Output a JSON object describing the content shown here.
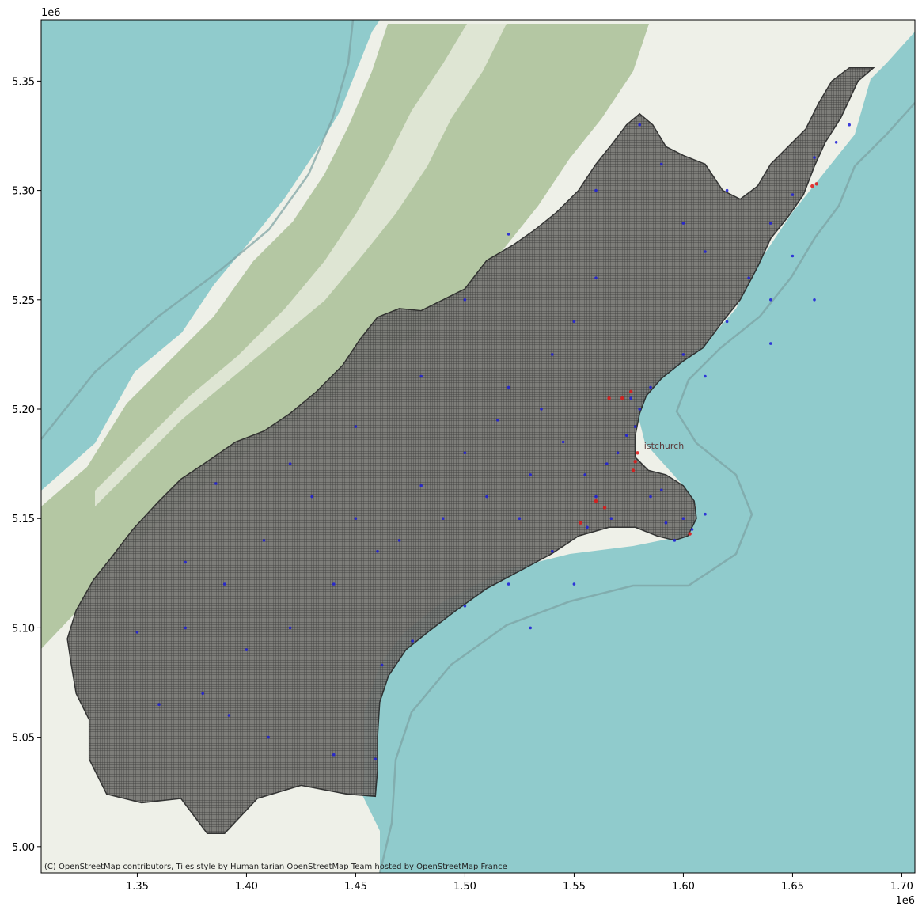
{
  "chart_data": {
    "type": "scatter",
    "title": "",
    "xlabel": "",
    "ylabel": "",
    "x_offset_label": "1e6",
    "y_offset_label": "1e6",
    "xlim": [
      1.306,
      1.706
    ],
    "ylim": [
      4.988,
      5.378
    ],
    "x_ticks": [
      1.35,
      1.4,
      1.45,
      1.5,
      1.55,
      1.6,
      1.65,
      1.7
    ],
    "x_tick_labels": [
      "1.35",
      "1.40",
      "1.45",
      "1.50",
      "1.55",
      "1.60",
      "1.65",
      "1.70"
    ],
    "y_ticks": [
      5.0,
      5.05,
      5.1,
      5.15,
      5.2,
      5.25,
      5.3,
      5.35
    ],
    "y_tick_labels": [
      "5.00",
      "5.05",
      "5.10",
      "5.15",
      "5.20",
      "5.25",
      "5.30",
      "5.35"
    ],
    "grid": false,
    "basemap": "OpenStreetMap Humanitarian",
    "colors": {
      "sea": "#90cbcc",
      "land": "#eef0e8",
      "forest": "#a9bf96",
      "region_fill": "#6f6f6c",
      "grid_line": "#2c2c2c",
      "points_primary": "#1c1cd8",
      "points_secondary": "#e01515"
    },
    "map_labels": [
      {
        "text": "istchurch",
        "x": 1.582,
        "y": 5.182
      }
    ],
    "series": [
      {
        "color": "#1c1cd8",
        "points": [
          [
            1.574,
            5.188
          ],
          [
            1.578,
            5.192
          ],
          [
            1.57,
            5.18
          ],
          [
            1.565,
            5.175
          ],
          [
            1.58,
            5.2
          ],
          [
            1.576,
            5.205
          ],
          [
            1.59,
            5.163
          ],
          [
            1.6,
            5.15
          ],
          [
            1.604,
            5.145
          ],
          [
            1.61,
            5.152
          ],
          [
            1.596,
            5.14
          ],
          [
            1.66,
            5.315
          ],
          [
            1.65,
            5.298
          ],
          [
            1.64,
            5.285
          ],
          [
            1.67,
            5.322
          ],
          [
            1.676,
            5.33
          ],
          [
            1.62,
            5.24
          ],
          [
            1.6,
            5.225
          ],
          [
            1.585,
            5.21
          ],
          [
            1.54,
            5.225
          ],
          [
            1.52,
            5.21
          ],
          [
            1.5,
            5.18
          ],
          [
            1.48,
            5.165
          ],
          [
            1.46,
            5.135
          ],
          [
            1.44,
            5.12
          ],
          [
            1.42,
            5.1
          ],
          [
            1.4,
            5.09
          ],
          [
            1.38,
            5.07
          ],
          [
            1.36,
            5.065
          ],
          [
            1.35,
            5.098
          ],
          [
            1.372,
            5.13
          ],
          [
            1.41,
            5.05
          ],
          [
            1.44,
            5.042
          ],
          [
            1.459,
            5.04
          ],
          [
            1.462,
            5.083
          ],
          [
            1.476,
            5.094
          ],
          [
            1.5,
            5.11
          ],
          [
            1.52,
            5.12
          ],
          [
            1.54,
            5.135
          ],
          [
            1.556,
            5.146
          ],
          [
            1.56,
            5.16
          ],
          [
            1.53,
            5.17
          ],
          [
            1.51,
            5.16
          ],
          [
            1.49,
            5.15
          ],
          [
            1.47,
            5.14
          ],
          [
            1.45,
            5.15
          ],
          [
            1.43,
            5.16
          ],
          [
            1.408,
            5.14
          ],
          [
            1.39,
            5.12
          ],
          [
            1.372,
            5.1
          ],
          [
            1.392,
            5.06
          ],
          [
            1.52,
            5.28
          ],
          [
            1.56,
            5.3
          ],
          [
            1.58,
            5.33
          ],
          [
            1.59,
            5.312
          ],
          [
            1.61,
            5.272
          ],
          [
            1.63,
            5.26
          ],
          [
            1.64,
            5.25
          ],
          [
            1.62,
            5.3
          ],
          [
            1.56,
            5.26
          ],
          [
            1.55,
            5.24
          ],
          [
            1.5,
            5.25
          ],
          [
            1.48,
            5.215
          ],
          [
            1.45,
            5.192
          ],
          [
            1.42,
            5.175
          ],
          [
            1.386,
            5.166
          ],
          [
            1.515,
            5.195
          ],
          [
            1.535,
            5.2
          ],
          [
            1.545,
            5.185
          ],
          [
            1.555,
            5.17
          ],
          [
            1.525,
            5.15
          ],
          [
            1.585,
            5.16
          ],
          [
            1.592,
            5.148
          ],
          [
            1.567,
            5.15
          ],
          [
            1.55,
            5.12
          ],
          [
            1.53,
            5.1
          ],
          [
            1.6,
            5.285
          ],
          [
            1.65,
            5.27
          ],
          [
            1.66,
            5.25
          ],
          [
            1.64,
            5.23
          ],
          [
            1.61,
            5.215
          ]
        ]
      },
      {
        "color": "#e01515",
        "points": [
          [
            1.578,
            5.176
          ],
          [
            1.579,
            5.18
          ],
          [
            1.577,
            5.172
          ],
          [
            1.576,
            5.208
          ],
          [
            1.572,
            5.205
          ],
          [
            1.566,
            5.205
          ],
          [
            1.659,
            5.302
          ],
          [
            1.661,
            5.303
          ],
          [
            1.603,
            5.143
          ],
          [
            1.56,
            5.158
          ],
          [
            1.564,
            5.155
          ],
          [
            1.553,
            5.148
          ]
        ]
      }
    ]
  },
  "region": {
    "outline": [
      [
        1.687,
        5.356
      ],
      [
        1.68,
        5.35
      ],
      [
        1.672,
        5.333
      ],
      [
        1.665,
        5.322
      ],
      [
        1.66,
        5.311
      ],
      [
        1.655,
        5.298
      ],
      [
        1.648,
        5.288
      ],
      [
        1.64,
        5.278
      ],
      [
        1.634,
        5.265
      ],
      [
        1.626,
        5.25
      ],
      [
        1.618,
        5.24
      ],
      [
        1.609,
        5.228
      ],
      [
        1.6,
        5.222
      ],
      [
        1.59,
        5.214
      ],
      [
        1.583,
        5.206
      ],
      [
        1.58,
        5.198
      ],
      [
        1.578,
        5.188
      ],
      [
        1.578,
        5.178
      ],
      [
        1.584,
        5.172
      ],
      [
        1.592,
        5.17
      ],
      [
        1.6,
        5.165
      ],
      [
        1.605,
        5.158
      ],
      [
        1.606,
        5.15
      ],
      [
        1.602,
        5.142
      ],
      [
        1.596,
        5.14
      ],
      [
        1.588,
        5.142
      ],
      [
        1.578,
        5.146
      ],
      [
        1.566,
        5.146
      ],
      [
        1.552,
        5.142
      ],
      [
        1.54,
        5.134
      ],
      [
        1.525,
        5.126
      ],
      [
        1.51,
        5.118
      ],
      [
        1.496,
        5.108
      ],
      [
        1.483,
        5.098
      ],
      [
        1.473,
        5.09
      ],
      [
        1.465,
        5.078
      ],
      [
        1.461,
        5.066
      ],
      [
        1.46,
        5.05
      ],
      [
        1.46,
        5.035
      ],
      [
        1.459,
        5.023
      ],
      [
        1.446,
        5.024
      ],
      [
        1.425,
        5.028
      ],
      [
        1.405,
        5.022
      ],
      [
        1.39,
        5.006
      ],
      [
        1.382,
        5.006
      ],
      [
        1.37,
        5.022
      ],
      [
        1.352,
        5.02
      ],
      [
        1.336,
        5.024
      ],
      [
        1.328,
        5.04
      ],
      [
        1.328,
        5.058
      ],
      [
        1.322,
        5.07
      ],
      [
        1.32,
        5.082
      ],
      [
        1.318,
        5.095
      ],
      [
        1.322,
        5.108
      ],
      [
        1.33,
        5.122
      ],
      [
        1.338,
        5.132
      ],
      [
        1.348,
        5.145
      ],
      [
        1.36,
        5.158
      ],
      [
        1.37,
        5.168
      ],
      [
        1.382,
        5.176
      ],
      [
        1.395,
        5.185
      ],
      [
        1.408,
        5.19
      ],
      [
        1.42,
        5.198
      ],
      [
        1.432,
        5.208
      ],
      [
        1.444,
        5.22
      ],
      [
        1.452,
        5.232
      ],
      [
        1.46,
        5.242
      ],
      [
        1.47,
        5.246
      ],
      [
        1.48,
        5.245
      ],
      [
        1.49,
        5.25
      ],
      [
        1.5,
        5.255
      ],
      [
        1.51,
        5.268
      ],
      [
        1.522,
        5.275
      ],
      [
        1.532,
        5.282
      ],
      [
        1.542,
        5.29
      ],
      [
        1.552,
        5.3
      ],
      [
        1.56,
        5.312
      ],
      [
        1.568,
        5.322
      ],
      [
        1.574,
        5.33
      ],
      [
        1.58,
        5.335
      ],
      [
        1.586,
        5.33
      ],
      [
        1.592,
        5.32
      ],
      [
        1.6,
        5.316
      ],
      [
        1.61,
        5.312
      ],
      [
        1.618,
        5.3
      ],
      [
        1.626,
        5.296
      ],
      [
        1.634,
        5.302
      ],
      [
        1.64,
        5.312
      ],
      [
        1.648,
        5.32
      ],
      [
        1.656,
        5.328
      ],
      [
        1.662,
        5.34
      ],
      [
        1.668,
        5.35
      ],
      [
        1.676,
        5.356
      ]
    ]
  },
  "attribution": "(C) OpenStreetMap contributors, Tiles style by Humanitarian OpenStreetMap Team hosted by OpenStreetMap France"
}
